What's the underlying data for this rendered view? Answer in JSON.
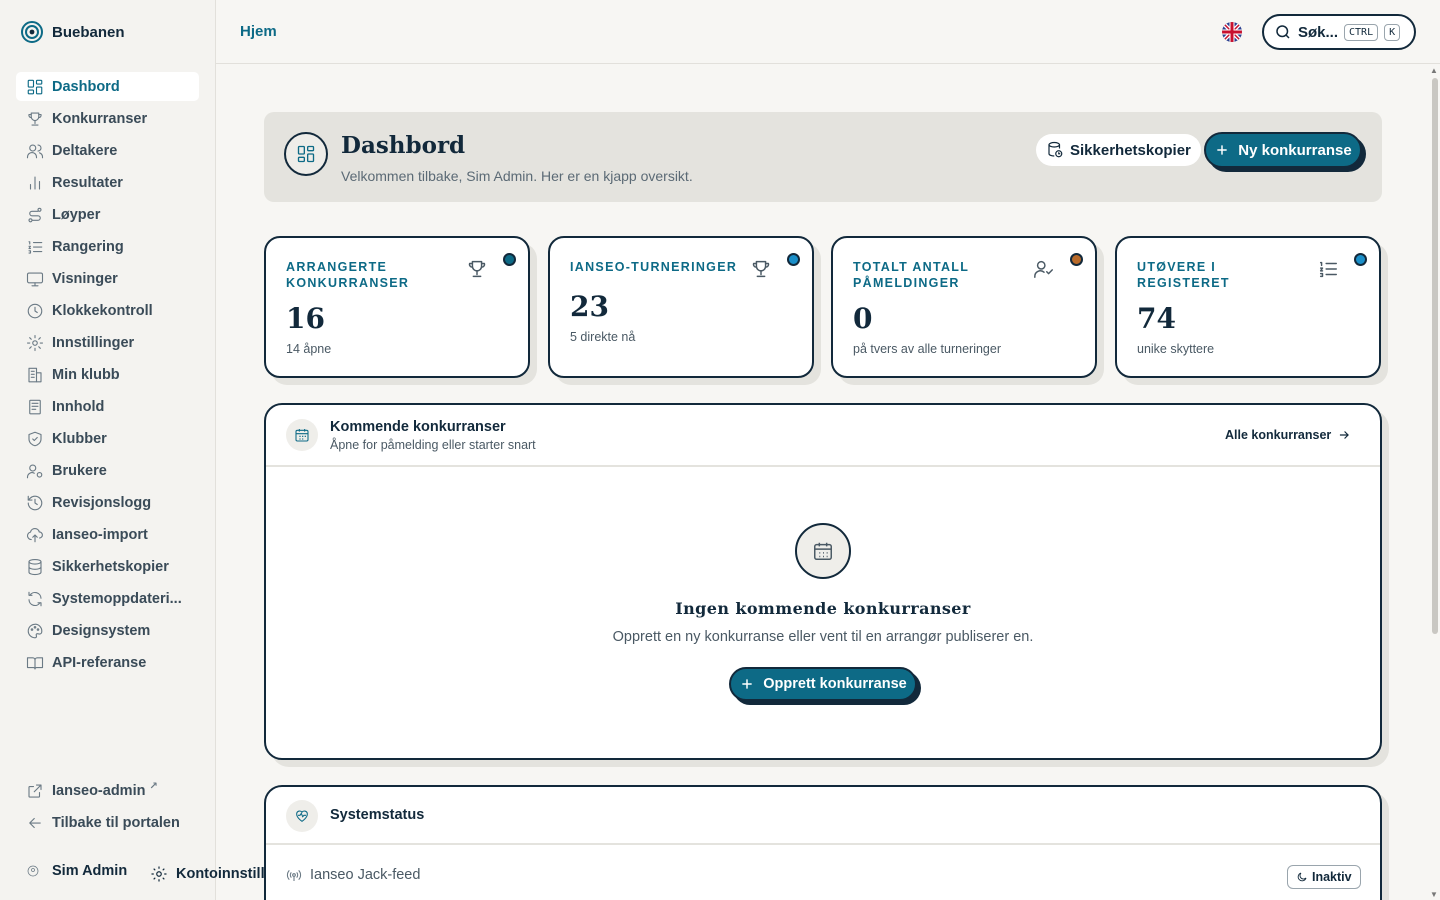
{
  "brand": {
    "name": "Buebanen"
  },
  "sidebar": {
    "items": [
      {
        "label": "Dashbord",
        "icon": "dashboard-icon",
        "active": true
      },
      {
        "label": "Konkurranser",
        "icon": "trophy-icon"
      },
      {
        "label": "Deltakere",
        "icon": "users-icon"
      },
      {
        "label": "Resultater",
        "icon": "bar-chart-icon"
      },
      {
        "label": "Løyper",
        "icon": "route-icon"
      },
      {
        "label": "Rangering",
        "icon": "list-ordered-icon"
      },
      {
        "label": "Visninger",
        "icon": "monitor-icon"
      },
      {
        "label": "Klokkekontroll",
        "icon": "clock-icon"
      },
      {
        "label": "Innstillinger",
        "icon": "gear-icon"
      },
      {
        "label": "Min klubb",
        "icon": "building-icon"
      },
      {
        "label": "Innhold",
        "icon": "document-icon"
      },
      {
        "label": "Klubber",
        "icon": "shield-icon"
      },
      {
        "label": "Brukere",
        "icon": "user-cog-icon"
      },
      {
        "label": "Revisjonslogg",
        "icon": "history-icon"
      },
      {
        "label": "Ianseo-import",
        "icon": "cloud-upload-icon"
      },
      {
        "label": "Sikkerhetskopier",
        "icon": "database-icon"
      },
      {
        "label": "Systemoppdateri...",
        "icon": "refresh-icon"
      },
      {
        "label": "Designsystem",
        "icon": "palette-icon"
      },
      {
        "label": "API-referanse",
        "icon": "book-icon"
      }
    ],
    "bottom": [
      {
        "label": "Ianseo-admin",
        "icon": "external-link-icon",
        "ext_mark": "↗"
      },
      {
        "label": "Tilbake til portalen",
        "icon": "arrow-left-icon"
      }
    ],
    "user": {
      "name": "Sim Admin"
    },
    "account": {
      "label": "Kontoinnstillinger"
    }
  },
  "topbar": {
    "breadcrumb": "Hjem",
    "search": {
      "label": "Søk...",
      "kbd1": "CTRL",
      "kbd2": "K"
    }
  },
  "hero": {
    "title": "Dashbord",
    "subtitle": "Velkommen tilbake, Sim Admin. Her er en kjapp oversikt.",
    "backup_label": "Sikkerhetskopier",
    "new_label": "Ny konkurranse"
  },
  "stats": [
    {
      "label": "Arrangerte konkurranser",
      "value": "16",
      "hint": "14 åpne",
      "dot_color": "#0d6a86",
      "icon": "trophy-icon"
    },
    {
      "label": "Ianseo-turneringer",
      "value": "23",
      "hint": "5 direkte nå",
      "dot_color": "#1a8fc9",
      "icon": "trophy-icon"
    },
    {
      "label": "Totalt antall påmeldinger",
      "value": "0",
      "hint": "på tvers av alle turneringer",
      "dot_color": "#b86a2a",
      "icon": "user-check-icon"
    },
    {
      "label": "Utøvere i registeret",
      "value": "74",
      "hint": "unike skyttere",
      "dot_color": "#1a8fc9",
      "icon": "list-icon"
    }
  ],
  "upcoming": {
    "title": "Kommende konkurranser",
    "subtitle": "Åpne for påmelding eller starter snart",
    "link_label": "Alle konkurranser",
    "empty_title": "Ingen kommende konkurranser",
    "empty_subtitle": "Opprett en ny konkurranse eller vent til en arrangør publiserer en.",
    "create_label": "Opprett konkurranse"
  },
  "system": {
    "title": "Systemstatus",
    "row_label": "Ianseo Jack-feed",
    "badge_label": "Inaktiv"
  }
}
